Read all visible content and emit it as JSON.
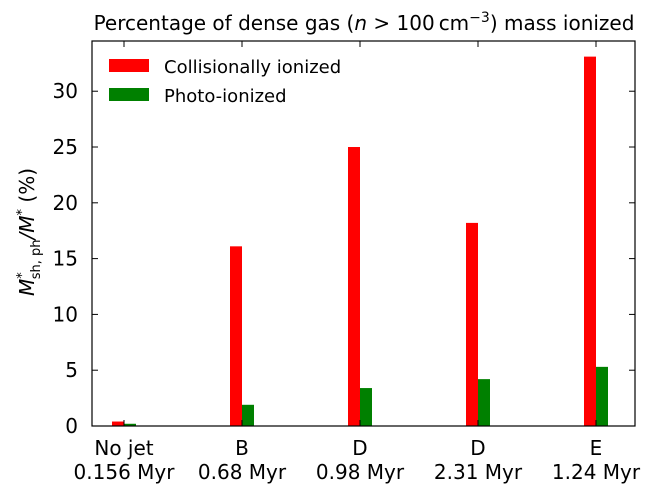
{
  "chart_data": {
    "type": "bar",
    "title": "Percentage of dense gas (n > 100 cm⁻³) mass ionized",
    "title_parts": {
      "prefix": "Percentage of dense gas (",
      "n": "n",
      "gt": " > 100 ",
      "unit": "cm",
      "exp": "−3",
      "suffix": ") mass ionized"
    },
    "ylabel": "M*sh,ph/M* (%)",
    "ylabel_parts": {
      "m1": "M",
      "sup1": "*",
      "sub1": "sh, ph",
      "slash": "/M",
      "sup2": "*",
      "suffix": "  (%)"
    },
    "xlabel": "",
    "categories": [
      [
        "No jet",
        "0.156 Myr"
      ],
      [
        "B",
        "0.68 Myr"
      ],
      [
        "D",
        "0.98 Myr"
      ],
      [
        "D",
        "2.31 Myr"
      ],
      [
        "E",
        "1.24 Myr"
      ]
    ],
    "series": [
      {
        "name": "Collisionally ionized",
        "color": "#ff0000",
        "values": [
          0.4,
          16.1,
          25.0,
          18.2,
          33.1
        ]
      },
      {
        "name": "Photo-ionized",
        "color": "#008000",
        "values": [
          0.2,
          1.9,
          3.4,
          4.2,
          5.3
        ]
      }
    ],
    "ylim": [
      0,
      34.5
    ],
    "yticks": [
      0,
      5,
      10,
      15,
      20,
      25,
      30
    ],
    "grid": false,
    "legend_position": "top-left"
  }
}
